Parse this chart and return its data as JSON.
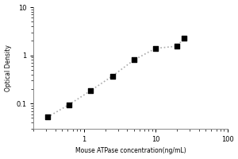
{
  "x": [
    0.313,
    0.625,
    1.25,
    2.5,
    5,
    10,
    20,
    25
  ],
  "y": [
    0.052,
    0.095,
    0.185,
    0.37,
    0.8,
    1.4,
    1.55,
    2.3
  ],
  "marker": "s",
  "marker_color": "black",
  "marker_size": 4,
  "line_color": "#aaaaaa",
  "line_style": "dotted",
  "line_width": 1.2,
  "xlabel": "Mouse ATPase concentration(ng/mL)",
  "ylabel": "Optical Density",
  "xlim": [
    0.2,
    100
  ],
  "ylim": [
    0.03,
    10
  ],
  "background_color": "#ffffff",
  "xlabel_fontsize": 5.5,
  "ylabel_fontsize": 5.5,
  "tick_fontsize": 6
}
